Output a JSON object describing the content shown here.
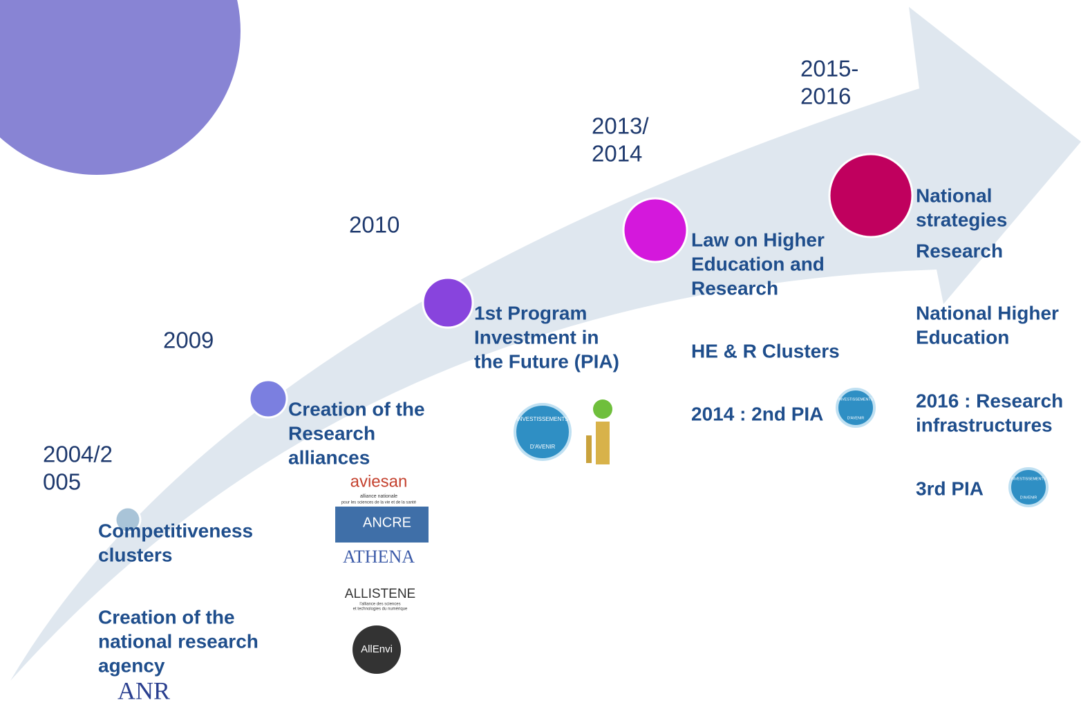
{
  "milestones": [
    {
      "year": [
        "2004/2",
        "005"
      ],
      "color": "#a9c4d8",
      "items": [
        [
          "Competitiveness",
          "clusters"
        ],
        [
          "Creation of the",
          "national research",
          "agency"
        ]
      ]
    },
    {
      "year": [
        "2009"
      ],
      "color": "#7b7fe0",
      "items": [
        [
          "Creation of the",
          "Research",
          "alliances"
        ]
      ]
    },
    {
      "year": [
        "2010"
      ],
      "color": "#8844dd",
      "items": [
        [
          "1st Program",
          "Investment in",
          "the Future (PIA)"
        ]
      ]
    },
    {
      "year": [
        "2013/",
        "2014"
      ],
      "color": "#d418dc",
      "items": [
        [
          "Law on Higher",
          "Education and",
          "Research"
        ],
        [
          "HE & R Clusters"
        ],
        [
          "2014 : 2nd PIA"
        ]
      ]
    },
    {
      "year": [
        "2015-",
        "2016"
      ],
      "color": "#c0005e",
      "items": [
        [
          "National",
          "strategies"
        ],
        [
          "Research"
        ],
        [
          "National Higher",
          "Education"
        ],
        [
          "2016 : Research",
          "infrastructures"
        ],
        [
          "3rd PIA"
        ]
      ]
    }
  ],
  "logos": {
    "anr": "ANR",
    "aviesan": [
      "aviesan",
      "alliance nationale",
      "pour les sciences de la vie et de la santé"
    ],
    "ancre": "ANCRE",
    "athena": "ATHENA",
    "allistene": [
      "ALLISTENE",
      "l'alliance des sciences",
      "et technologies du numérique"
    ],
    "allenvi": "AllEnvi",
    "pia_badge": [
      "INVESTISSEMENTS",
      "D'AVENIR"
    ]
  }
}
